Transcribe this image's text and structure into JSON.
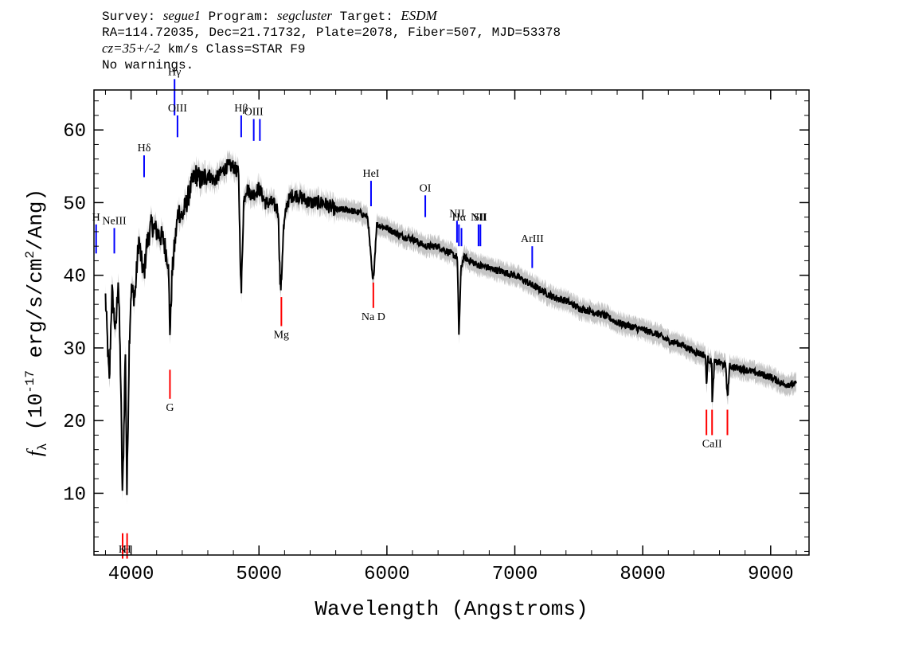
{
  "header": {
    "survey_label": "Survey: ",
    "survey": "segue1",
    "program_label": " Program: ",
    "program": "segcluster",
    "target_label": " Target: ",
    "target": "ESDM",
    "coords": "RA=114.72035, Dec=21.71732, Plate=2078, Fiber=507, MJD=53378",
    "cz": "cz=35+/-2",
    "cz_unit_class": " km/s Class=STAR F9",
    "warnings": "No warnings."
  },
  "chart_data": {
    "type": "line",
    "title": "",
    "xlabel": "Wavelength (Angstroms)",
    "ylabel": "f_λ (10^-17 erg/s/cm^2/Ang)",
    "xlim": [
      3710,
      9300
    ],
    "ylim": [
      1.5,
      65.5
    ],
    "grid": false,
    "x_ticks": [
      4000,
      5000,
      6000,
      7000,
      8000,
      9000
    ],
    "y_ticks": [
      10,
      20,
      30,
      40,
      50,
      60
    ],
    "series": [
      {
        "color": "#000000",
        "error_band_color": "#bbbbbb",
        "points": [
          [
            3800,
            37
          ],
          [
            3830,
            25
          ],
          [
            3850,
            38
          ],
          [
            3880,
            32
          ],
          [
            3900,
            40
          ],
          [
            3920,
            25
          ],
          [
            3933,
            9
          ],
          [
            3945,
            20
          ],
          [
            3955,
            30
          ],
          [
            3968,
            10
          ],
          [
            3985,
            30
          ],
          [
            4000,
            38
          ],
          [
            4030,
            37
          ],
          [
            4060,
            45
          ],
          [
            4080,
            42
          ],
          [
            4102,
            40
          ],
          [
            4120,
            44
          ],
          [
            4160,
            47
          ],
          [
            4200,
            46
          ],
          [
            4250,
            45
          ],
          [
            4290,
            42
          ],
          [
            4305,
            32
          ],
          [
            4320,
            40
          ],
          [
            4340,
            44
          ],
          [
            4370,
            49
          ],
          [
            4400,
            48
          ],
          [
            4450,
            51
          ],
          [
            4500,
            54
          ],
          [
            4550,
            53
          ],
          [
            4600,
            54
          ],
          [
            4650,
            53
          ],
          [
            4700,
            54
          ],
          [
            4750,
            55
          ],
          [
            4800,
            55
          ],
          [
            4840,
            54
          ],
          [
            4861,
            37
          ],
          [
            4880,
            50
          ],
          [
            4900,
            52
          ],
          [
            4950,
            51
          ],
          [
            5000,
            52
          ],
          [
            5050,
            50
          ],
          [
            5100,
            50
          ],
          [
            5150,
            49
          ],
          [
            5167,
            38
          ],
          [
            5175,
            39
          ],
          [
            5190,
            46
          ],
          [
            5220,
            50
          ],
          [
            5260,
            51
          ],
          [
            5300,
            51
          ],
          [
            5400,
            50
          ],
          [
            5500,
            50
          ],
          [
            5600,
            49
          ],
          [
            5700,
            49
          ],
          [
            5800,
            48.5
          ],
          [
            5850,
            48
          ],
          [
            5890,
            39
          ],
          [
            5900,
            41
          ],
          [
            5920,
            47
          ],
          [
            6000,
            46.5
          ],
          [
            6100,
            45.5
          ],
          [
            6200,
            45
          ],
          [
            6300,
            44
          ],
          [
            6400,
            44
          ],
          [
            6500,
            43
          ],
          [
            6550,
            42.5
          ],
          [
            6563,
            32
          ],
          [
            6580,
            41
          ],
          [
            6600,
            42.5
          ],
          [
            6700,
            41.5
          ],
          [
            6800,
            41
          ],
          [
            6900,
            40.5
          ],
          [
            7000,
            40
          ],
          [
            7100,
            39
          ],
          [
            7200,
            38
          ],
          [
            7300,
            37
          ],
          [
            7400,
            36.5
          ],
          [
            7500,
            35.5
          ],
          [
            7600,
            35
          ],
          [
            7700,
            34.5
          ],
          [
            7800,
            33.5
          ],
          [
            7900,
            33
          ],
          [
            8000,
            32.5
          ],
          [
            8100,
            32
          ],
          [
            8200,
            31
          ],
          [
            8300,
            30.5
          ],
          [
            8400,
            29.5
          ],
          [
            8490,
            29
          ],
          [
            8498,
            25
          ],
          [
            8510,
            28.5
          ],
          [
            8540,
            28
          ],
          [
            8542,
            22
          ],
          [
            8560,
            28
          ],
          [
            8600,
            28
          ],
          [
            8650,
            27.5
          ],
          [
            8662,
            23
          ],
          [
            8680,
            27.5
          ],
          [
            8800,
            27
          ],
          [
            8900,
            26.5
          ],
          [
            9000,
            26
          ],
          [
            9100,
            25
          ],
          [
            9200,
            25
          ]
        ]
      }
    ],
    "emission_lines": [
      {
        "label": "H",
        "wavelength": 3727,
        "y_top": 47,
        "y_bottom": 43
      },
      {
        "label": "NeIII",
        "wavelength": 3869,
        "y_top": 46.5,
        "y_bottom": 43
      },
      {
        "label": "Hδ",
        "wavelength": 4102,
        "y_top": 56.5,
        "y_bottom": 53.5
      },
      {
        "label": "Hγ",
        "wavelength": 4340,
        "y_top": 67,
        "y_bottom": 62
      },
      {
        "label": "OIII",
        "wavelength": 4363,
        "y_top": 62,
        "y_bottom": 59
      },
      {
        "label": "Hβ",
        "wavelength": 4861,
        "y_top": 62,
        "y_bottom": 59
      },
      {
        "label": "OIII",
        "wavelength": 4959,
        "y_top": 61.5,
        "y_bottom": 58.5
      },
      {
        "label": "",
        "wavelength": 5007,
        "y_top": 61.5,
        "y_bottom": 58.5
      },
      {
        "label": "HeI",
        "wavelength": 5876,
        "y_top": 53,
        "y_bottom": 49.5
      },
      {
        "label": "OI",
        "wavelength": 6300,
        "y_top": 51,
        "y_bottom": 48
      },
      {
        "label": "NII",
        "wavelength": 6548,
        "y_top": 47.5,
        "y_bottom": 44.5
      },
      {
        "label": "Hα",
        "wavelength": 6563,
        "y_top": 47,
        "y_bottom": 44
      },
      {
        "label": "",
        "wavelength": 6583,
        "y_top": 46.5,
        "y_bottom": 44
      },
      {
        "label": "NII",
        "wavelength": 6716,
        "y_top": 47,
        "y_bottom": 44
      },
      {
        "label": "SII",
        "wavelength": 6731,
        "y_top": 47,
        "y_bottom": 44
      },
      {
        "label": "ArIII",
        "wavelength": 7136,
        "y_top": 44,
        "y_bottom": 41
      }
    ],
    "absorption_lines": [
      {
        "label": "K",
        "wavelength": 3934,
        "y_top": 4.5,
        "y_bottom": 1
      },
      {
        "label": "H",
        "wavelength": 3969,
        "y_top": 4.5,
        "y_bottom": 1
      },
      {
        "label": "G",
        "wavelength": 4304,
        "y_top": 27,
        "y_bottom": 23
      },
      {
        "label": "Mg",
        "wavelength": 5175,
        "y_top": 37,
        "y_bottom": 33
      },
      {
        "label": "Na D",
        "wavelength": 5894,
        "y_top": 39,
        "y_bottom": 35.5
      },
      {
        "label": "",
        "wavelength": 8498,
        "y_top": 21.5,
        "y_bottom": 18
      },
      {
        "label": "CaII",
        "wavelength": 8542,
        "y_top": 21.5,
        "y_bottom": 18
      },
      {
        "label": "",
        "wavelength": 8662,
        "y_top": 21.5,
        "y_bottom": 18
      }
    ],
    "emission_color": "#0000ff",
    "absorption_color": "#ff0000"
  }
}
